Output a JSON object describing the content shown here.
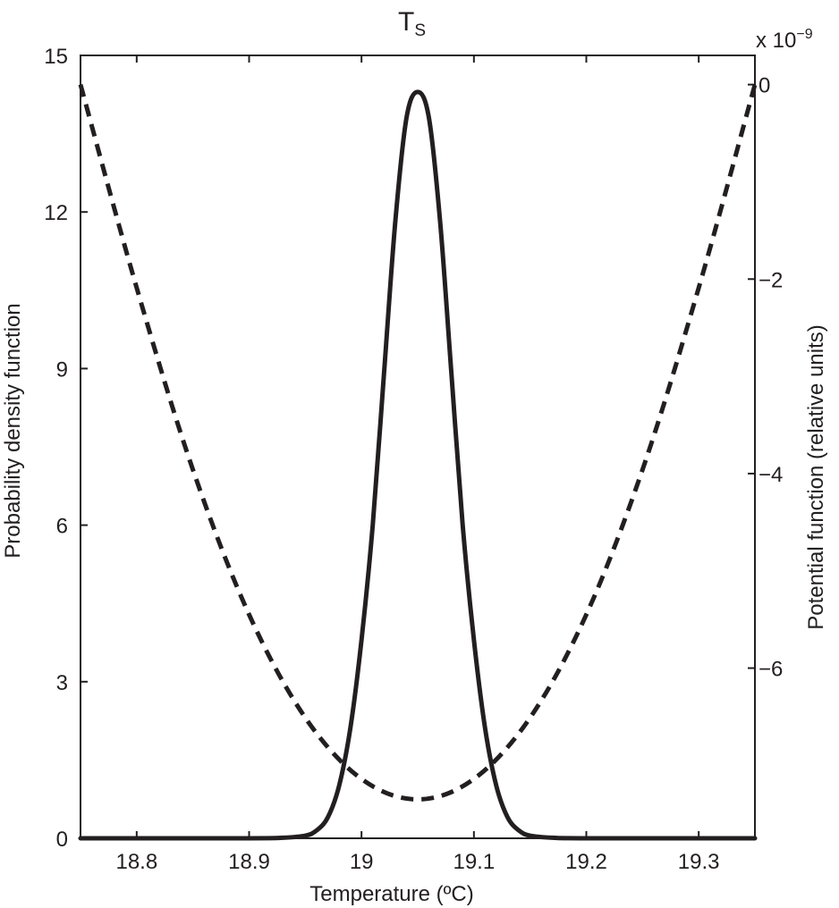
{
  "chart_data": {
    "type": "line",
    "title_main": "T",
    "title_sub": "S",
    "xlabel": "Temperature (ºC)",
    "ylabel_left": "Probability density function",
    "ylabel_right": "Potential function (relative units)",
    "right_axis_multiplier_base": "x 10",
    "right_axis_multiplier_exponent": "−9",
    "xlim": [
      18.75,
      19.35
    ],
    "ylim_left": [
      0,
      15
    ],
    "ylim_right": [
      -7.75,
      0.3
    ],
    "x_ticks": [
      18.8,
      18.9,
      19,
      19.1,
      19.2,
      19.3
    ],
    "x_tick_labels": [
      "18.8",
      "18.9",
      "19",
      "19.1",
      "19.2",
      "19.3"
    ],
    "y_left_ticks": [
      0,
      3,
      6,
      9,
      12,
      15
    ],
    "y_left_tick_labels": [
      "0",
      "3",
      "6",
      "9",
      "12",
      "15"
    ],
    "y_right_ticks": [
      0,
      -2,
      -4,
      -6
    ],
    "y_right_tick_labels": [
      "0",
      "−2",
      "−4",
      "−6"
    ],
    "grid": false,
    "series": [
      {
        "axis": "left",
        "style": "solid",
        "color": "#231f20",
        "x": [
          18.75,
          18.9,
          18.93,
          18.95,
          18.96,
          18.97,
          18.98,
          18.99,
          19.0,
          19.01,
          19.02,
          19.03,
          19.04,
          19.05,
          19.06,
          19.07,
          19.08,
          19.09,
          19.1,
          19.11,
          19.12,
          19.13,
          19.14,
          19.15,
          19.17,
          19.2,
          19.35
        ],
        "values": [
          0,
          0,
          0.01,
          0.05,
          0.15,
          0.4,
          1.0,
          2.1,
          3.8,
          6.0,
          8.9,
          11.8,
          13.8,
          14.3,
          13.8,
          11.8,
          8.9,
          6.0,
          3.8,
          2.1,
          1.0,
          0.4,
          0.15,
          0.05,
          0.01,
          0,
          0
        ]
      },
      {
        "axis": "right",
        "style": "dashed",
        "color": "#231f20",
        "x": [
          18.75,
          18.8,
          18.85,
          18.9,
          18.95,
          19.0,
          19.05,
          19.1,
          19.15,
          19.2,
          19.25,
          19.3,
          19.35
        ],
        "values": [
          0.0,
          -2.09,
          -3.96,
          -5.45,
          -6.51,
          -7.14,
          -7.35,
          -7.14,
          -6.51,
          -5.45,
          -3.96,
          -2.09,
          0.0
        ]
      }
    ]
  }
}
